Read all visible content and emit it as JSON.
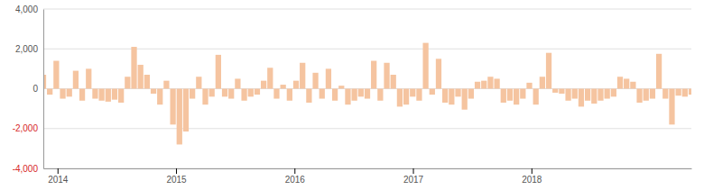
{
  "chart_data": {
    "type": "bar",
    "x": [
      2013.88,
      2013.9347,
      2013.9894,
      2014.0441,
      2014.0988,
      2014.1535,
      2014.2082,
      2014.2629,
      2014.3176,
      2014.3723,
      2014.427,
      2014.4817,
      2014.5364,
      2014.5911,
      2014.6458,
      2014.7005,
      2014.7552,
      2014.8099,
      2014.8646,
      2014.9193,
      2014.974,
      2015.0287,
      2015.0834,
      2015.1381,
      2015.1928,
      2015.2475,
      2015.3022,
      2015.3569,
      2015.4116,
      2015.4663,
      2015.521,
      2015.5757,
      2015.6304,
      2015.6851,
      2015.7398,
      2015.7945,
      2015.8492,
      2015.9039,
      2015.9586,
      2016.0133,
      2016.068,
      2016.1227,
      2016.1774,
      2016.2321,
      2016.2868,
      2016.3415,
      2016.3962,
      2016.4509,
      2016.5056,
      2016.5603,
      2016.615,
      2016.6697,
      2016.7244,
      2016.7791,
      2016.8338,
      2016.8885,
      2016.9432,
      2016.9979,
      2017.0526,
      2017.1073,
      2017.162,
      2017.2167,
      2017.2714,
      2017.3261,
      2017.3808,
      2017.4355,
      2017.4902,
      2017.5449,
      2017.5996,
      2017.6543,
      2017.709,
      2017.7637,
      2017.8184,
      2017.8731,
      2017.9278,
      2017.9825,
      2018.0372,
      2018.0919,
      2018.1466,
      2018.2013,
      2018.256,
      2018.3107,
      2018.3654,
      2018.4201,
      2018.4748,
      2018.5295,
      2018.5842,
      2018.6389,
      2018.6936,
      2018.7483,
      2018.803,
      2018.8577,
      2018.9124,
      2018.9671,
      2019.0218,
      2019.0765,
      2019.1312,
      2019.1859,
      2019.2406,
      2019.2953,
      2019.35
    ],
    "values": [
      700,
      -300,
      1400,
      -500,
      -400,
      900,
      -600,
      1000,
      -500,
      -600,
      -650,
      -550,
      -700,
      600,
      2100,
      1200,
      700,
      -250,
      -800,
      400,
      -1800,
      -2800,
      -2150,
      -500,
      600,
      -800,
      -400,
      1700,
      -400,
      -500,
      500,
      -600,
      -400,
      -300,
      400,
      1050,
      -500,
      200,
      -600,
      400,
      1300,
      -700,
      800,
      -500,
      1000,
      -600,
      150,
      -800,
      -600,
      -400,
      -500,
      1400,
      -600,
      1300,
      700,
      -900,
      -800,
      -400,
      -600,
      2300,
      -300,
      1500,
      -700,
      -800,
      -400,
      -1050,
      -500,
      350,
      400,
      600,
      500,
      -700,
      -600,
      -800,
      -500,
      300,
      -800,
      600,
      1800,
      -200,
      -250,
      -600,
      -500,
      -900,
      -600,
      -750,
      -600,
      -500,
      -400,
      600,
      500,
      350,
      -700,
      -600,
      -500,
      1750,
      -500,
      -1800,
      -350,
      -400,
      -300
    ],
    "color": "#F5C4A0",
    "xlim": [
      2013.88,
      2019.35
    ],
    "xticks": [
      2014,
      2015,
      2016,
      2017,
      2018
    ],
    "ylim": [
      -4000,
      4000
    ],
    "yticks": [
      {
        "value": -4000,
        "label": "-4,000"
      },
      {
        "value": -2000,
        "label": "-2,000"
      },
      0,
      {
        "value": 2000,
        "label": "2,000"
      },
      {
        "value": 4000,
        "label": "4,000"
      }
    ],
    "grid": true
  }
}
